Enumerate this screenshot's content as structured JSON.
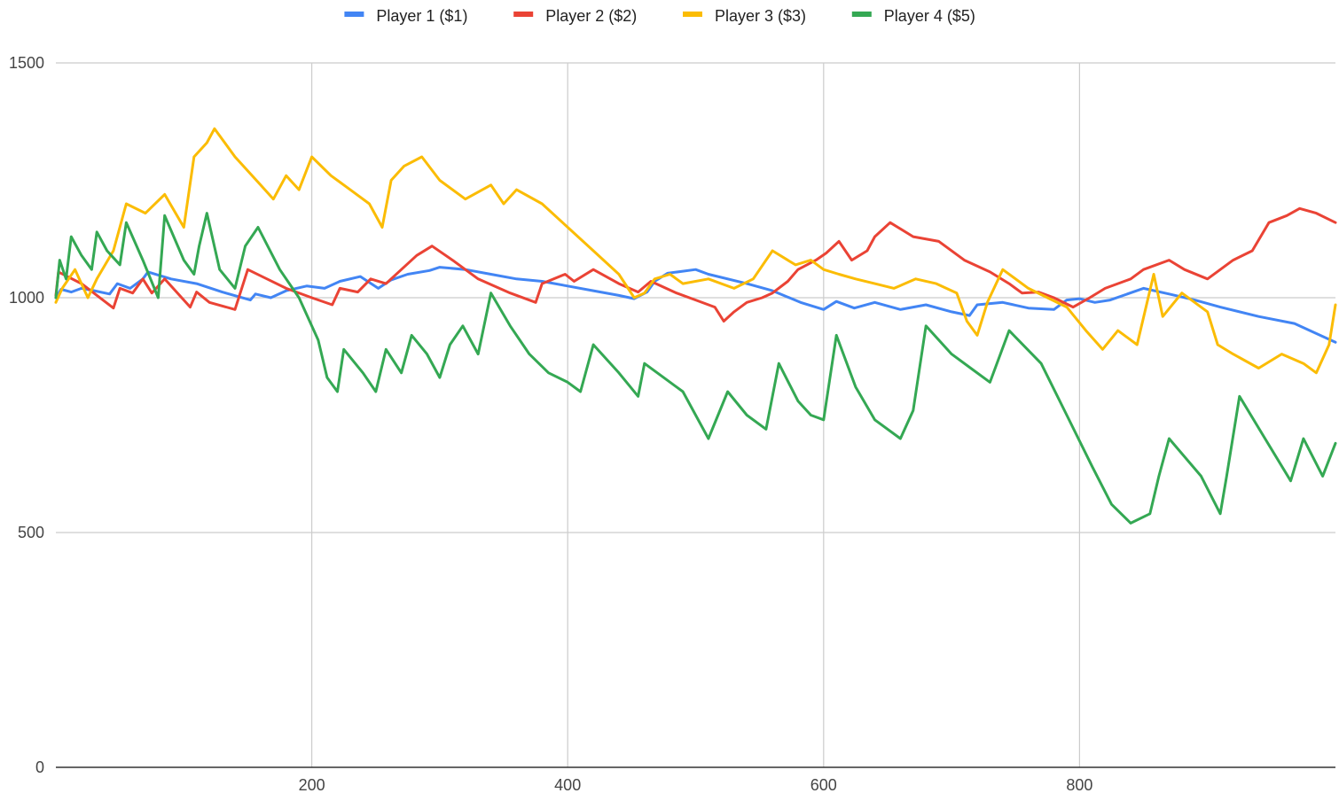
{
  "chart_data": {
    "type": "line",
    "title": "",
    "xlabel": "",
    "ylabel": "",
    "xlim": [
      0,
      1000
    ],
    "ylim": [
      0,
      1500
    ],
    "x_ticks": [
      200,
      400,
      600,
      800
    ],
    "y_ticks": [
      0,
      500,
      1000,
      1500
    ],
    "grid": true,
    "legend_position": "top",
    "series": [
      {
        "name": "Player 1 ($1)",
        "color": "#4285f4",
        "points": [
          [
            0,
            1000
          ],
          [
            4,
            1018
          ],
          [
            12,
            1012
          ],
          [
            20,
            1020
          ],
          [
            30,
            1015
          ],
          [
            42,
            1008
          ],
          [
            48,
            1030
          ],
          [
            58,
            1020
          ],
          [
            68,
            1040
          ],
          [
            72,
            1055
          ],
          [
            90,
            1040
          ],
          [
            110,
            1030
          ],
          [
            130,
            1012
          ],
          [
            152,
            995
          ],
          [
            156,
            1008
          ],
          [
            168,
            1000
          ],
          [
            180,
            1015
          ],
          [
            196,
            1025
          ],
          [
            210,
            1020
          ],
          [
            222,
            1035
          ],
          [
            238,
            1045
          ],
          [
            252,
            1020
          ],
          [
            262,
            1038
          ],
          [
            275,
            1050
          ],
          [
            292,
            1058
          ],
          [
            300,
            1065
          ],
          [
            320,
            1060
          ],
          [
            340,
            1050
          ],
          [
            360,
            1040
          ],
          [
            380,
            1035
          ],
          [
            400,
            1025
          ],
          [
            420,
            1015
          ],
          [
            440,
            1005
          ],
          [
            452,
            998
          ],
          [
            462,
            1012
          ],
          [
            468,
            1035
          ],
          [
            478,
            1052
          ],
          [
            500,
            1060
          ],
          [
            510,
            1050
          ],
          [
            540,
            1030
          ],
          [
            560,
            1015
          ],
          [
            582,
            990
          ],
          [
            600,
            975
          ],
          [
            610,
            992
          ],
          [
            624,
            978
          ],
          [
            640,
            990
          ],
          [
            660,
            975
          ],
          [
            680,
            985
          ],
          [
            700,
            970
          ],
          [
            714,
            962
          ],
          [
            720,
            985
          ],
          [
            740,
            990
          ],
          [
            760,
            978
          ],
          [
            780,
            975
          ],
          [
            790,
            995
          ],
          [
            800,
            998
          ],
          [
            812,
            990
          ],
          [
            824,
            995
          ],
          [
            850,
            1020
          ],
          [
            870,
            1008
          ],
          [
            890,
            995
          ],
          [
            910,
            980
          ],
          [
            940,
            960
          ],
          [
            968,
            945
          ],
          [
            1000,
            905
          ]
        ]
      },
      {
        "name": "Player 2 ($2)",
        "color": "#ea4335",
        "points": [
          [
            0,
            1005
          ],
          [
            2,
            1055
          ],
          [
            20,
            1030
          ],
          [
            45,
            978
          ],
          [
            50,
            1020
          ],
          [
            60,
            1010
          ],
          [
            68,
            1040
          ],
          [
            75,
            1010
          ],
          [
            85,
            1040
          ],
          [
            105,
            980
          ],
          [
            110,
            1012
          ],
          [
            120,
            990
          ],
          [
            140,
            975
          ],
          [
            150,
            1060
          ],
          [
            165,
            1040
          ],
          [
            180,
            1020
          ],
          [
            200,
            1000
          ],
          [
            216,
            985
          ],
          [
            222,
            1020
          ],
          [
            236,
            1012
          ],
          [
            246,
            1040
          ],
          [
            258,
            1030
          ],
          [
            270,
            1060
          ],
          [
            282,
            1090
          ],
          [
            294,
            1110
          ],
          [
            310,
            1080
          ],
          [
            330,
            1040
          ],
          [
            355,
            1010
          ],
          [
            375,
            990
          ],
          [
            380,
            1030
          ],
          [
            398,
            1050
          ],
          [
            405,
            1035
          ],
          [
            420,
            1060
          ],
          [
            440,
            1030
          ],
          [
            455,
            1012
          ],
          [
            465,
            1035
          ],
          [
            485,
            1010
          ],
          [
            500,
            995
          ],
          [
            515,
            980
          ],
          [
            522,
            950
          ],
          [
            530,
            970
          ],
          [
            540,
            990
          ],
          [
            552,
            1000
          ],
          [
            560,
            1010
          ],
          [
            572,
            1035
          ],
          [
            580,
            1060
          ],
          [
            594,
            1080
          ],
          [
            602,
            1095
          ],
          [
            612,
            1120
          ],
          [
            622,
            1080
          ],
          [
            634,
            1100
          ],
          [
            640,
            1130
          ],
          [
            652,
            1160
          ],
          [
            670,
            1130
          ],
          [
            690,
            1120
          ],
          [
            710,
            1080
          ],
          [
            730,
            1055
          ],
          [
            745,
            1030
          ],
          [
            755,
            1010
          ],
          [
            768,
            1012
          ],
          [
            780,
            1000
          ],
          [
            795,
            980
          ],
          [
            808,
            1000
          ],
          [
            820,
            1020
          ],
          [
            840,
            1040
          ],
          [
            850,
            1060
          ],
          [
            870,
            1080
          ],
          [
            882,
            1060
          ],
          [
            900,
            1040
          ],
          [
            920,
            1080
          ],
          [
            935,
            1100
          ],
          [
            948,
            1160
          ],
          [
            962,
            1175
          ],
          [
            972,
            1190
          ],
          [
            985,
            1180
          ],
          [
            1000,
            1160
          ]
        ]
      },
      {
        "name": "Player 3 ($3)",
        "color": "#fbbc04",
        "points": [
          [
            0,
            990
          ],
          [
            5,
            1020
          ],
          [
            15,
            1060
          ],
          [
            25,
            1000
          ],
          [
            32,
            1040
          ],
          [
            45,
            1100
          ],
          [
            55,
            1200
          ],
          [
            70,
            1180
          ],
          [
            85,
            1220
          ],
          [
            100,
            1150
          ],
          [
            108,
            1300
          ],
          [
            118,
            1330
          ],
          [
            124,
            1360
          ],
          [
            140,
            1300
          ],
          [
            160,
            1240
          ],
          [
            170,
            1210
          ],
          [
            180,
            1260
          ],
          [
            190,
            1230
          ],
          [
            200,
            1300
          ],
          [
            215,
            1260
          ],
          [
            230,
            1230
          ],
          [
            245,
            1200
          ],
          [
            255,
            1150
          ],
          [
            262,
            1250
          ],
          [
            272,
            1280
          ],
          [
            286,
            1300
          ],
          [
            300,
            1250
          ],
          [
            320,
            1210
          ],
          [
            340,
            1240
          ],
          [
            350,
            1200
          ],
          [
            360,
            1230
          ],
          [
            380,
            1200
          ],
          [
            400,
            1150
          ],
          [
            420,
            1100
          ],
          [
            440,
            1050
          ],
          [
            452,
            1000
          ],
          [
            460,
            1010
          ],
          [
            468,
            1040
          ],
          [
            480,
            1050
          ],
          [
            490,
            1030
          ],
          [
            510,
            1040
          ],
          [
            530,
            1020
          ],
          [
            545,
            1040
          ],
          [
            560,
            1100
          ],
          [
            578,
            1070
          ],
          [
            590,
            1080
          ],
          [
            600,
            1060
          ],
          [
            612,
            1050
          ],
          [
            625,
            1040
          ],
          [
            640,
            1030
          ],
          [
            655,
            1020
          ],
          [
            672,
            1040
          ],
          [
            688,
            1030
          ],
          [
            704,
            1010
          ],
          [
            712,
            950
          ],
          [
            720,
            920
          ],
          [
            728,
            990
          ],
          [
            740,
            1060
          ],
          [
            760,
            1020
          ],
          [
            775,
            1000
          ],
          [
            790,
            980
          ],
          [
            805,
            930
          ],
          [
            818,
            890
          ],
          [
            830,
            930
          ],
          [
            845,
            900
          ],
          [
            858,
            1050
          ],
          [
            865,
            960
          ],
          [
            880,
            1010
          ],
          [
            900,
            970
          ],
          [
            908,
            900
          ],
          [
            920,
            880
          ],
          [
            940,
            850
          ],
          [
            958,
            880
          ],
          [
            975,
            860
          ],
          [
            985,
            840
          ],
          [
            995,
            900
          ],
          [
            1000,
            985
          ]
        ]
      },
      {
        "name": "Player 4 ($5)",
        "color": "#34a853",
        "points": [
          [
            0,
            1000
          ],
          [
            3,
            1080
          ],
          [
            8,
            1040
          ],
          [
            12,
            1130
          ],
          [
            20,
            1090
          ],
          [
            28,
            1060
          ],
          [
            32,
            1140
          ],
          [
            40,
            1100
          ],
          [
            50,
            1070
          ],
          [
            55,
            1160
          ],
          [
            68,
            1080
          ],
          [
            80,
            1000
          ],
          [
            85,
            1175
          ],
          [
            100,
            1080
          ],
          [
            108,
            1050
          ],
          [
            112,
            1110
          ],
          [
            118,
            1180
          ],
          [
            128,
            1060
          ],
          [
            140,
            1020
          ],
          [
            148,
            1110
          ],
          [
            158,
            1150
          ],
          [
            175,
            1060
          ],
          [
            190,
            1000
          ],
          [
            205,
            910
          ],
          [
            212,
            830
          ],
          [
            220,
            800
          ],
          [
            225,
            890
          ],
          [
            240,
            840
          ],
          [
            250,
            800
          ],
          [
            258,
            890
          ],
          [
            270,
            840
          ],
          [
            278,
            920
          ],
          [
            290,
            880
          ],
          [
            300,
            830
          ],
          [
            308,
            900
          ],
          [
            318,
            940
          ],
          [
            330,
            880
          ],
          [
            340,
            1010
          ],
          [
            355,
            940
          ],
          [
            370,
            880
          ],
          [
            385,
            840
          ],
          [
            400,
            820
          ],
          [
            410,
            800
          ],
          [
            420,
            900
          ],
          [
            440,
            840
          ],
          [
            455,
            790
          ],
          [
            460,
            860
          ],
          [
            475,
            830
          ],
          [
            490,
            800
          ],
          [
            500,
            750
          ],
          [
            510,
            700
          ],
          [
            525,
            800
          ],
          [
            540,
            750
          ],
          [
            555,
            720
          ],
          [
            565,
            860
          ],
          [
            580,
            780
          ],
          [
            590,
            750
          ],
          [
            600,
            740
          ],
          [
            610,
            920
          ],
          [
            625,
            810
          ],
          [
            640,
            740
          ],
          [
            660,
            700
          ],
          [
            670,
            760
          ],
          [
            680,
            940
          ],
          [
            700,
            880
          ],
          [
            715,
            850
          ],
          [
            730,
            820
          ],
          [
            745,
            930
          ],
          [
            770,
            860
          ],
          [
            790,
            750
          ],
          [
            810,
            640
          ],
          [
            825,
            560
          ],
          [
            840,
            520
          ],
          [
            855,
            540
          ],
          [
            862,
            620
          ],
          [
            870,
            700
          ],
          [
            895,
            620
          ],
          [
            910,
            540
          ],
          [
            915,
            620
          ],
          [
            925,
            790
          ],
          [
            945,
            700
          ],
          [
            965,
            610
          ],
          [
            975,
            700
          ],
          [
            990,
            620
          ],
          [
            1000,
            690
          ]
        ]
      }
    ]
  }
}
